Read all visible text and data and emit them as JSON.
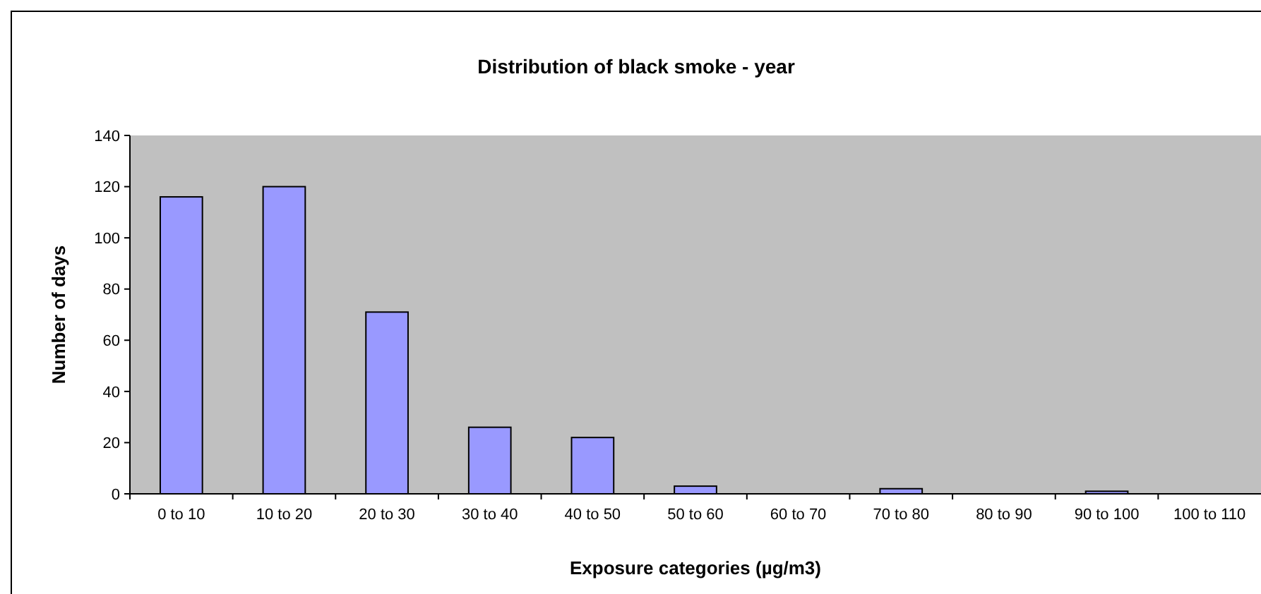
{
  "chart_data": {
    "type": "bar",
    "title": "Distribution of black smoke - year",
    "xlabel": "Exposure categories (µg/m3)",
    "ylabel": "Number of days",
    "categories": [
      "0 to 10",
      "10 to 20",
      "20 to 30",
      "30 to 40",
      "40 to 50",
      "50 to 60",
      "60 to 70",
      "70 to 80",
      "80 to 90",
      "90 to 100",
      "100 to 110"
    ],
    "values": [
      116,
      120,
      71,
      26,
      22,
      3,
      0,
      2,
      0,
      1,
      0
    ],
    "color": "#9999ff",
    "ylim": [
      0,
      140
    ],
    "yticks": [
      0,
      20,
      40,
      60,
      80,
      100,
      120,
      140
    ],
    "grid": false
  }
}
